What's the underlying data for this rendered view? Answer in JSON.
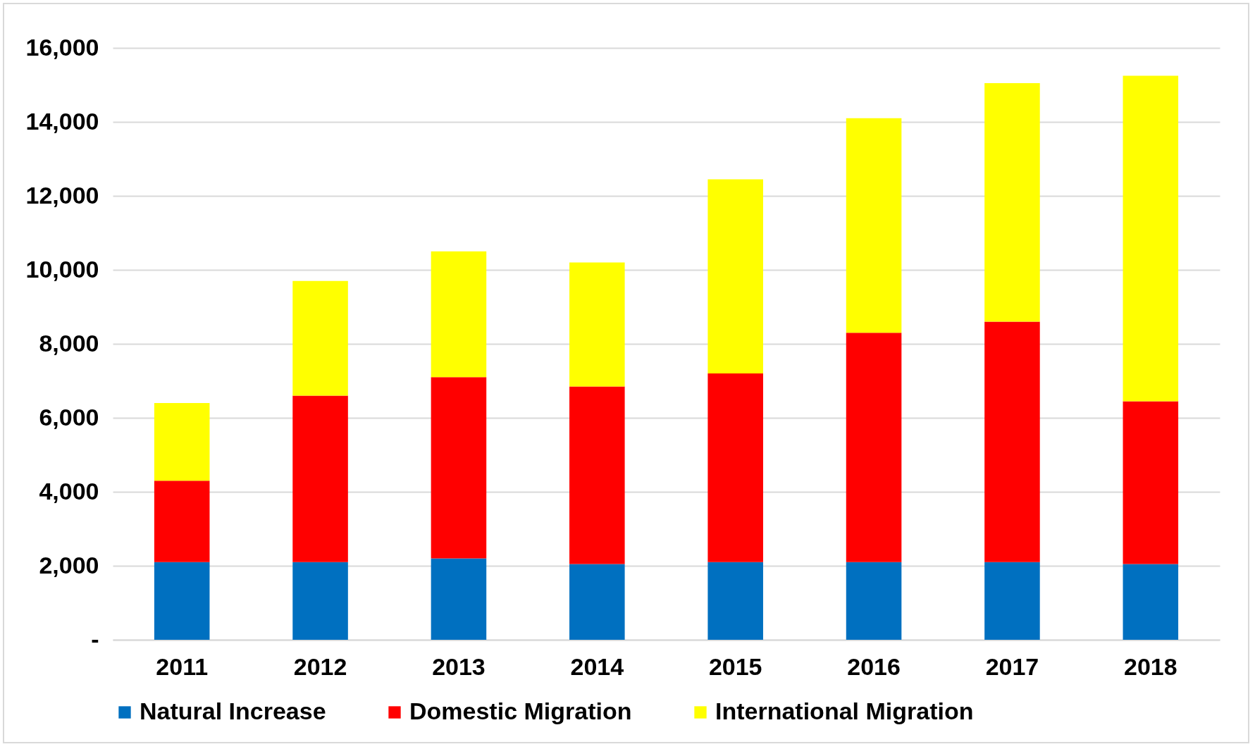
{
  "chart_data": {
    "type": "bar",
    "stacked": true,
    "categories": [
      "2011",
      "2012",
      "2013",
      "2014",
      "2015",
      "2016",
      "2017",
      "2018"
    ],
    "series": [
      {
        "name": "Natural Increase",
        "color": "#0070c0",
        "values": [
          2100,
          2100,
          2200,
          2050,
          2100,
          2100,
          2100,
          2050
        ]
      },
      {
        "name": "Domestic Migration",
        "color": "#ff0000",
        "values": [
          2200,
          4500,
          4900,
          4800,
          5100,
          6200,
          6500,
          4400
        ]
      },
      {
        "name": "International Migration",
        "color": "#ffff00",
        "values": [
          2100,
          3100,
          3400,
          3350,
          5250,
          5800,
          6450,
          8800
        ]
      }
    ],
    "ylim": [
      0,
      16000
    ],
    "yticks": [
      {
        "value": 0,
        "label": "-"
      },
      {
        "value": 2000,
        "label": "2,000"
      },
      {
        "value": 4000,
        "label": "4,000"
      },
      {
        "value": 6000,
        "label": "6,000"
      },
      {
        "value": 8000,
        "label": "8,000"
      },
      {
        "value": 10000,
        "label": "10,000"
      },
      {
        "value": 12000,
        "label": "12,000"
      },
      {
        "value": 14000,
        "label": "14,000"
      },
      {
        "value": 16000,
        "label": "16,000"
      }
    ],
    "grid": "y",
    "legend": "bottom"
  }
}
